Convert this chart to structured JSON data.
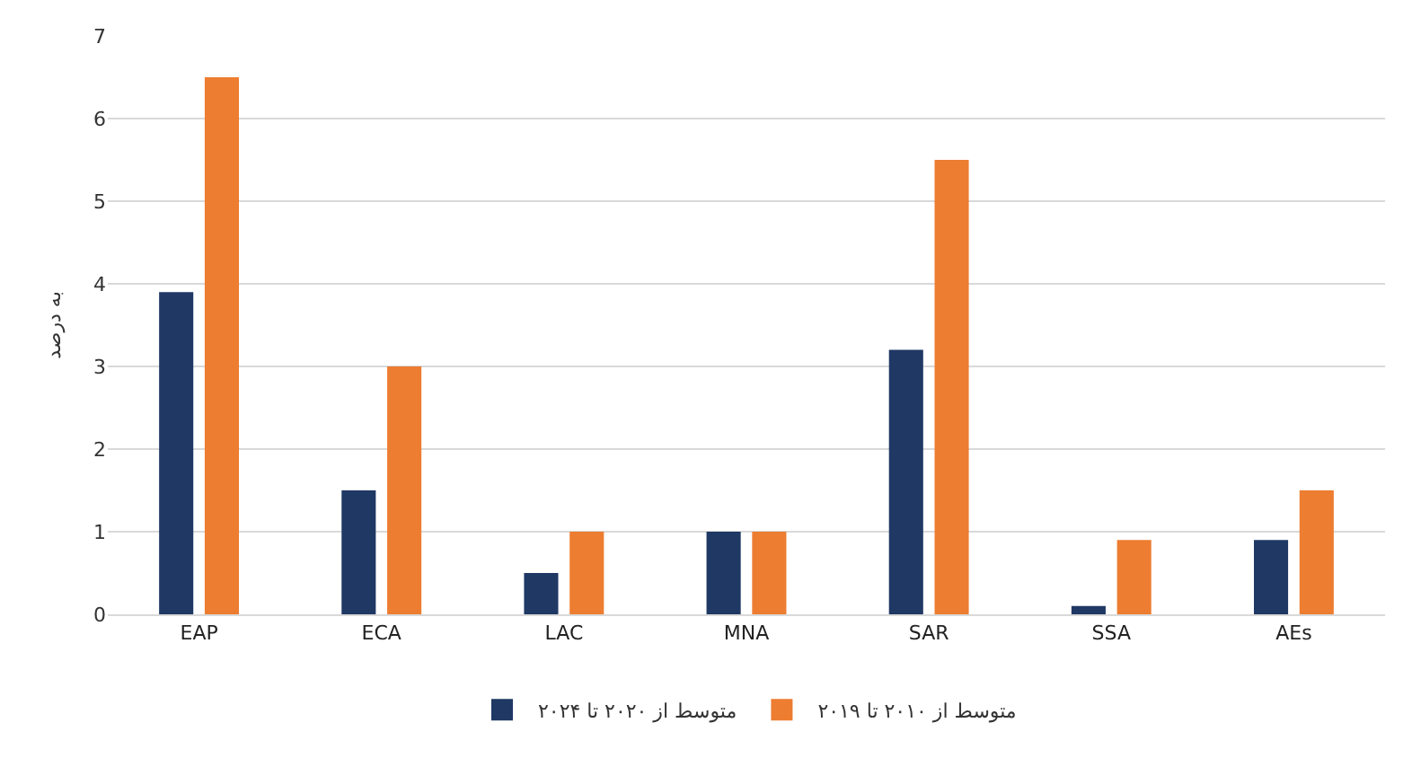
{
  "chart_data": {
    "type": "bar",
    "ylabel": "به درصد",
    "categories": [
      "EAP",
      "ECA",
      "LAC",
      "MNA",
      "SAR",
      "SSA",
      "AEs"
    ],
    "series": [
      {
        "name": "متوسط از ۲۰۲۰ تا ۲۰۲۴",
        "color": "#1f3864",
        "values": [
          3.9,
          1.5,
          0.5,
          1.0,
          3.2,
          0.1,
          0.9
        ]
      },
      {
        "name": "متوسط از ۲۰۱۰ تا ۲۰۱۹",
        "color": "#ed7d31",
        "values": [
          6.5,
          3.0,
          1.0,
          1.0,
          5.5,
          0.9,
          1.5
        ]
      }
    ],
    "ylim": [
      0,
      7
    ],
    "yticks": [
      0,
      1,
      2,
      3,
      4,
      5,
      6,
      7
    ],
    "grid": "y",
    "legend": "bottom"
  }
}
